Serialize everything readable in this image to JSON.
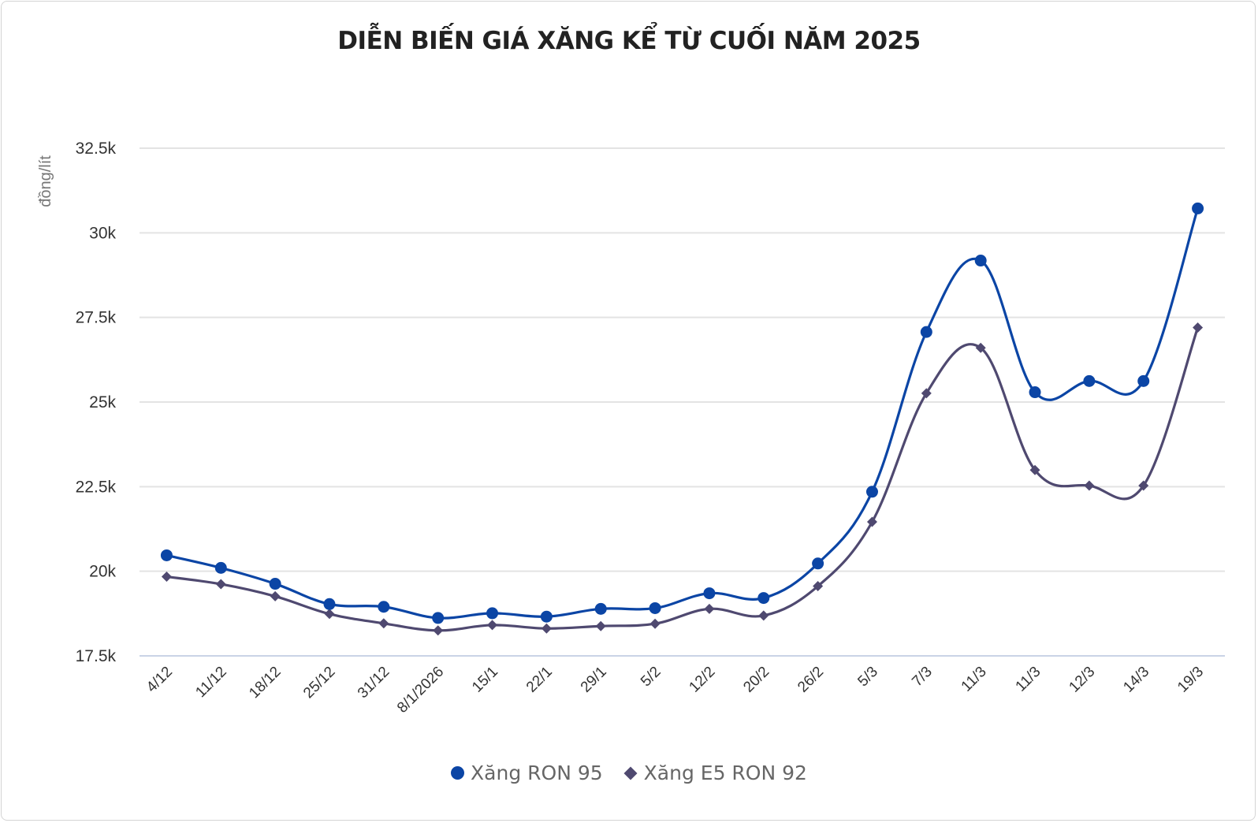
{
  "title": "DIỄN BIẾN GIÁ XĂNG KỂ TỪ CUỐI NĂM 2025",
  "colors": {
    "ron95": "#0B45A5",
    "e5ron92": "#4F4970",
    "grid": "#e3e3e3",
    "axis": "#c9d3e6"
  },
  "legend": {
    "ron95": "Xăng RON 95",
    "e5ron92": "Xăng E5 RON 92"
  },
  "chart_data": {
    "type": "line",
    "title": "DIỄN BIẾN GIÁ XĂNG KỂ TỪ CUỐI NĂM 2025",
    "xlabel": "",
    "ylabel": "đồng/lít",
    "ylim": [
      17500,
      32500
    ],
    "yticks": [
      17500,
      20000,
      22500,
      25000,
      27500,
      30000,
      32500
    ],
    "ytick_labels": [
      "17.5k",
      "20k",
      "22.5k",
      "25k",
      "27.5k",
      "30k",
      "32.5k"
    ],
    "grid": true,
    "legend_position": "bottom",
    "smooth": true,
    "categories": [
      "4/12",
      "11/12",
      "18/12",
      "25/12",
      "31/12",
      "8/1/2026",
      "15/1",
      "22/1",
      "29/1",
      "5/2",
      "12/2",
      "20/2",
      "26/2",
      "5/3",
      "7/3",
      "11/3",
      "11/3",
      "12/3",
      "14/3",
      "19/3"
    ],
    "series": [
      {
        "name": "Xăng RON 95",
        "marker": "circle",
        "values": [
          20470,
          20100,
          19630,
          19030,
          18950,
          18620,
          18760,
          18660,
          18890,
          18910,
          19350,
          19210,
          20230,
          22350,
          27070,
          29180,
          25290,
          25620,
          25620,
          30720
        ]
      },
      {
        "name": "Xăng E5 RON 92",
        "marker": "diamond",
        "values": [
          19840,
          19620,
          19260,
          18740,
          18460,
          18250,
          18410,
          18310,
          18380,
          18450,
          18890,
          18690,
          19560,
          21460,
          25260,
          26600,
          22990,
          22530,
          22530,
          27200
        ]
      }
    ]
  }
}
